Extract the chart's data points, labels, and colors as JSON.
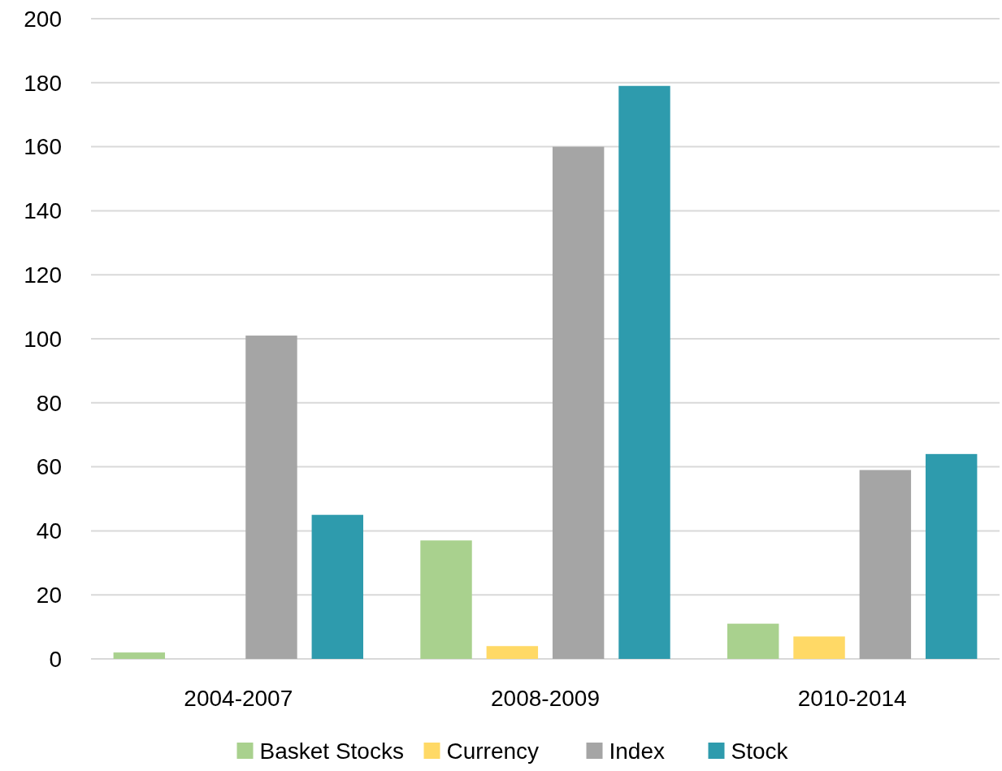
{
  "chart_data": {
    "type": "bar",
    "categories": [
      "2004-2007",
      "2008-2009",
      "2010-2014"
    ],
    "series": [
      {
        "name": "Basket Stocks",
        "color": "#a9d18e",
        "values": [
          2,
          37,
          11
        ]
      },
      {
        "name": "Currency",
        "color": "#ffd966",
        "values": [
          0,
          4,
          7
        ]
      },
      {
        "name": "Index",
        "color": "#a5a5a5",
        "values": [
          101,
          160,
          59
        ]
      },
      {
        "name": "Stock",
        "color": "#2e9bad",
        "values": [
          45,
          179,
          64
        ]
      }
    ],
    "ylim": [
      0,
      200
    ],
    "yticks": [
      0,
      20,
      40,
      60,
      80,
      100,
      120,
      140,
      160,
      180,
      200
    ],
    "grid": "y",
    "legend": "bottom"
  }
}
